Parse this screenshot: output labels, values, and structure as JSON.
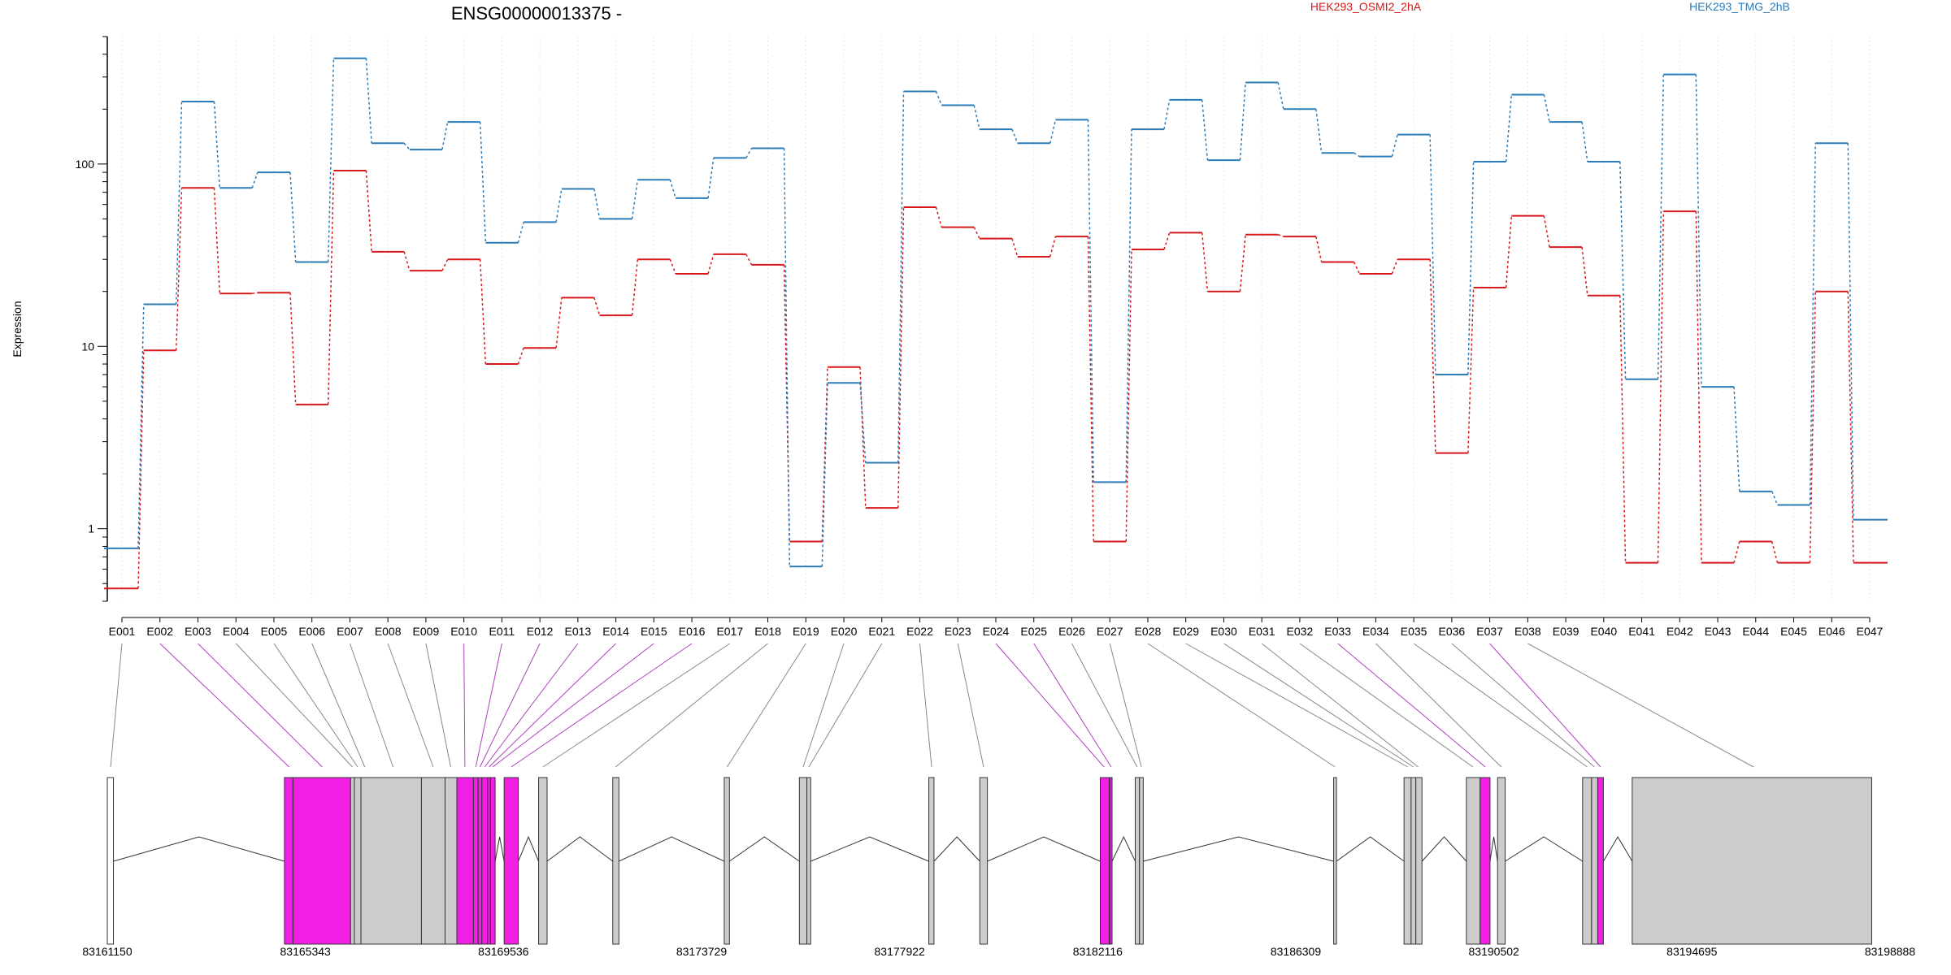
{
  "chart_data": {
    "type": "line",
    "title": "ENSG00000013375 -",
    "ylabel": "Expression",
    "yscale": "log",
    "ylim": [
      0.4,
      500
    ],
    "yticks": [
      1,
      10,
      100
    ],
    "ytick_labels": [
      "1",
      "10",
      "100"
    ],
    "grid": "vertical-dotted",
    "legend_placement": "top-right",
    "categories": [
      "E001",
      "E002",
      "E003",
      "E004",
      "E005",
      "E006",
      "E007",
      "E008",
      "E009",
      "E010",
      "E011",
      "E012",
      "E013",
      "E014",
      "E015",
      "E016",
      "E017",
      "E018",
      "E019",
      "E020",
      "E021",
      "E022",
      "E023",
      "E024",
      "E025",
      "E026",
      "E027",
      "E028",
      "E029",
      "E030",
      "E031",
      "E032",
      "E033",
      "E034",
      "E035",
      "E036",
      "E037",
      "E038",
      "E039",
      "E040",
      "E041",
      "E042",
      "E043",
      "E044",
      "E045",
      "E046",
      "E047"
    ],
    "series": [
      {
        "name": "HEK293_OSMI2_2hA",
        "color": "#d7191c",
        "values": [
          0.47,
          9.5,
          74,
          19.5,
          19.7,
          4.8,
          92,
          33,
          26,
          30,
          8,
          9.8,
          18.5,
          14.8,
          30,
          25,
          32,
          28,
          0.85,
          7.7,
          1.3,
          58,
          45,
          39,
          31,
          40,
          0.85,
          34,
          42,
          20,
          41,
          40,
          29,
          25,
          30,
          2.6,
          21,
          52,
          35,
          19,
          0.65,
          55,
          0.65,
          0.85,
          0.65,
          20,
          0.65
        ]
      },
      {
        "name": "HEK293_TMG_2hB",
        "color": "#2c7bb6",
        "values": [
          0.78,
          17,
          220,
          74,
          90,
          29,
          380,
          130,
          120,
          170,
          37,
          48,
          73,
          50,
          82,
          65,
          108,
          122,
          0.62,
          6.3,
          2.3,
          250,
          210,
          155,
          130,
          175,
          1.8,
          155,
          225,
          105,
          280,
          200,
          115,
          110,
          145,
          7,
          103,
          240,
          170,
          103,
          6.6,
          310,
          6,
          1.6,
          1.35,
          130,
          1.12
        ]
      }
    ],
    "genome_axis": {
      "range": [
        83161150,
        83198888
      ],
      "tick_labels": [
        "83161150",
        "83165343",
        "83169536",
        "83173729",
        "83177922",
        "83182116",
        "83186309",
        "83190502",
        "83194695",
        "83198888"
      ]
    },
    "exons": [
      {
        "start": 83161150,
        "end": 83161280,
        "fill": "#ffffff"
      },
      {
        "start": 83164900,
        "end": 83165080,
        "fill": "#f11fe3"
      },
      {
        "start": 83165080,
        "end": 83166300,
        "fill": "#f11fe3"
      },
      {
        "start": 83166300,
        "end": 83166380,
        "fill": "#cccccc"
      },
      {
        "start": 83166380,
        "end": 83166520,
        "fill": "#cccccc"
      },
      {
        "start": 83166520,
        "end": 83167800,
        "fill": "#cccccc"
      },
      {
        "start": 83167800,
        "end": 83168300,
        "fill": "#cccccc"
      },
      {
        "start": 83168300,
        "end": 83168550,
        "fill": "#cccccc"
      },
      {
        "start": 83168550,
        "end": 83168900,
        "fill": "#f11fe3"
      },
      {
        "start": 83168900,
        "end": 83169000,
        "fill": "#f11fe3"
      },
      {
        "start": 83169000,
        "end": 83169080,
        "fill": "#f11fe3"
      },
      {
        "start": 83169080,
        "end": 83169200,
        "fill": "#f11fe3"
      },
      {
        "start": 83169200,
        "end": 83169260,
        "fill": "#f11fe3"
      },
      {
        "start": 83169260,
        "end": 83169360,
        "fill": "#f11fe3"
      },
      {
        "start": 83169550,
        "end": 83169850,
        "fill": "#f11fe3"
      },
      {
        "start": 83170280,
        "end": 83170460,
        "fill": "#cccccc"
      },
      {
        "start": 83171850,
        "end": 83171980,
        "fill": "#cccccc"
      },
      {
        "start": 83174210,
        "end": 83174320,
        "fill": "#cccccc"
      },
      {
        "start": 83175800,
        "end": 83175960,
        "fill": "#cccccc"
      },
      {
        "start": 83175960,
        "end": 83176040,
        "fill": "#cccccc"
      },
      {
        "start": 83178540,
        "end": 83178650,
        "fill": "#cccccc"
      },
      {
        "start": 83179620,
        "end": 83179780,
        "fill": "#cccccc"
      },
      {
        "start": 83182170,
        "end": 83182360,
        "fill": "#f11fe3"
      },
      {
        "start": 83182370,
        "end": 83182420,
        "fill": "#f11fe3"
      },
      {
        "start": 83182910,
        "end": 83183000,
        "fill": "#cccccc"
      },
      {
        "start": 83183000,
        "end": 83183080,
        "fill": "#cccccc"
      },
      {
        "start": 83187110,
        "end": 83187170,
        "fill": "#cccccc"
      },
      {
        "start": 83188600,
        "end": 83188750,
        "fill": "#cccccc"
      },
      {
        "start": 83188750,
        "end": 83188850,
        "fill": "#cccccc"
      },
      {
        "start": 83188850,
        "end": 83188980,
        "fill": "#cccccc"
      },
      {
        "start": 83189920,
        "end": 83190210,
        "fill": "#cccccc"
      },
      {
        "start": 83190210,
        "end": 83190420,
        "fill": "#f11fe3"
      },
      {
        "start": 83190580,
        "end": 83190740,
        "fill": "#cccccc"
      },
      {
        "start": 83192380,
        "end": 83192570,
        "fill": "#cccccc"
      },
      {
        "start": 83192570,
        "end": 83192700,
        "fill": "#cccccc"
      },
      {
        "start": 83192700,
        "end": 83192820,
        "fill": "#f11fe3"
      },
      {
        "start": 83193430,
        "end": 83198500,
        "fill": "#cccccc"
      }
    ],
    "exon_links": [
      {
        "exon": "E001",
        "pos": 83161220,
        "color": "#888888"
      },
      {
        "exon": "E002",
        "pos": 83165000,
        "color": "#b040c0"
      },
      {
        "exon": "E003",
        "pos": 83165700,
        "color": "#b040c0"
      },
      {
        "exon": "E004",
        "pos": 83166340,
        "color": "#888888"
      },
      {
        "exon": "E005",
        "pos": 83166450,
        "color": "#888888"
      },
      {
        "exon": "E006",
        "pos": 83166600,
        "color": "#888888"
      },
      {
        "exon": "E007",
        "pos": 83167200,
        "color": "#888888"
      },
      {
        "exon": "E008",
        "pos": 83168050,
        "color": "#888888"
      },
      {
        "exon": "E009",
        "pos": 83168420,
        "color": "#888888"
      },
      {
        "exon": "E010",
        "pos": 83168720,
        "color": "#b040c0"
      },
      {
        "exon": "E011",
        "pos": 83168950,
        "color": "#b040c0"
      },
      {
        "exon": "E012",
        "pos": 83169040,
        "color": "#b040c0"
      },
      {
        "exon": "E013",
        "pos": 83169140,
        "color": "#b040c0"
      },
      {
        "exon": "E014",
        "pos": 83169230,
        "color": "#b040c0"
      },
      {
        "exon": "E015",
        "pos": 83169310,
        "color": "#b040c0"
      },
      {
        "exon": "E016",
        "pos": 83169700,
        "color": "#b040c0"
      },
      {
        "exon": "E017",
        "pos": 83170370,
        "color": "#888888"
      },
      {
        "exon": "E018",
        "pos": 83171910,
        "color": "#888888"
      },
      {
        "exon": "E019",
        "pos": 83174270,
        "color": "#888888"
      },
      {
        "exon": "E020",
        "pos": 83175880,
        "color": "#888888"
      },
      {
        "exon": "E021",
        "pos": 83176000,
        "color": "#888888"
      },
      {
        "exon": "E022",
        "pos": 83178600,
        "color": "#888888"
      },
      {
        "exon": "E023",
        "pos": 83179700,
        "color": "#888888"
      },
      {
        "exon": "E024",
        "pos": 83182250,
        "color": "#b040c0"
      },
      {
        "exon": "E025",
        "pos": 83182400,
        "color": "#b040c0"
      },
      {
        "exon": "E026",
        "pos": 83182950,
        "color": "#888888"
      },
      {
        "exon": "E027",
        "pos": 83183040,
        "color": "#888888"
      },
      {
        "exon": "E028",
        "pos": 83187140,
        "color": "#888888"
      },
      {
        "exon": "E029",
        "pos": 83188680,
        "color": "#888888"
      },
      {
        "exon": "E030",
        "pos": 83188800,
        "color": "#888888"
      },
      {
        "exon": "E031",
        "pos": 83188900,
        "color": "#888888"
      },
      {
        "exon": "E032",
        "pos": 83190060,
        "color": "#888888"
      },
      {
        "exon": "E033",
        "pos": 83190320,
        "color": "#b040c0"
      },
      {
        "exon": "E034",
        "pos": 83190660,
        "color": "#888888"
      },
      {
        "exon": "E035",
        "pos": 83192480,
        "color": "#888888"
      },
      {
        "exon": "E036",
        "pos": 83192630,
        "color": "#888888"
      },
      {
        "exon": "E037",
        "pos": 83192760,
        "color": "#b040c0"
      },
      {
        "exon": "E038",
        "pos": 83196000,
        "color": "#888888"
      }
    ]
  }
}
